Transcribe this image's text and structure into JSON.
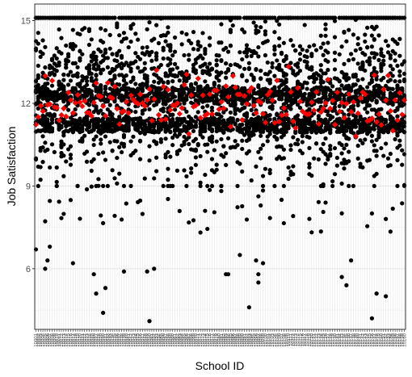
{
  "chart_data": {
    "type": "scatter",
    "title": "",
    "xlabel": "School ID",
    "ylabel": "Job Satisfaction",
    "ylim": [
      3.8,
      15.6
    ],
    "yticks": [
      6,
      9,
      12,
      15
    ],
    "grid": true,
    "legend": "none",
    "n_schools": 160,
    "x_tick_labels": "School IDs (160 tick labels, rotated 90°, illegibly overlapping)",
    "series": [
      {
        "name": "",
        "role": "individual teachers",
        "color": "#000000",
        "marker": "circle",
        "distribution": {
          "typical_range": [
            9,
            15.1
          ],
          "dense_bands": [
            11.2,
            12.3,
            15.1
          ],
          "low_outliers": [
            {
              "school": 1,
              "y": 6.7
            },
            {
              "school": 5,
              "y": 6.0
            },
            {
              "school": 6,
              "y": 6.3
            },
            {
              "school": 7,
              "y": 6.8
            },
            {
              "school": 17,
              "y": 6.2
            },
            {
              "school": 26,
              "y": 5.8
            },
            {
              "school": 27,
              "y": 5.1
            },
            {
              "school": 30,
              "y": 4.4
            },
            {
              "school": 31,
              "y": 5.3
            },
            {
              "school": 39,
              "y": 5.9
            },
            {
              "school": 49,
              "y": 5.9
            },
            {
              "school": 50,
              "y": 4.1
            },
            {
              "school": 52,
              "y": 6.0
            },
            {
              "school": 83,
              "y": 5.8
            },
            {
              "school": 84,
              "y": 5.8
            },
            {
              "school": 89,
              "y": 6.5
            },
            {
              "school": 93,
              "y": 4.6
            },
            {
              "school": 96,
              "y": 6.3
            },
            {
              "school": 97,
              "y": 5.8
            },
            {
              "school": 97,
              "y": 5.5
            },
            {
              "school": 99,
              "y": 6.2
            },
            {
              "school": 133,
              "y": 5.7
            },
            {
              "school": 135,
              "y": 5.4
            },
            {
              "school": 137,
              "y": 6.3
            },
            {
              "school": 146,
              "y": 4.2
            },
            {
              "school": 148,
              "y": 5.1
            },
            {
              "school": 152,
              "y": 5.0
            }
          ]
        }
      },
      {
        "name": "",
        "role": "school means",
        "color": "#ff0000",
        "marker": "diamond",
        "range": [
          10.6,
          13.7
        ],
        "center": 12.0
      }
    ]
  }
}
